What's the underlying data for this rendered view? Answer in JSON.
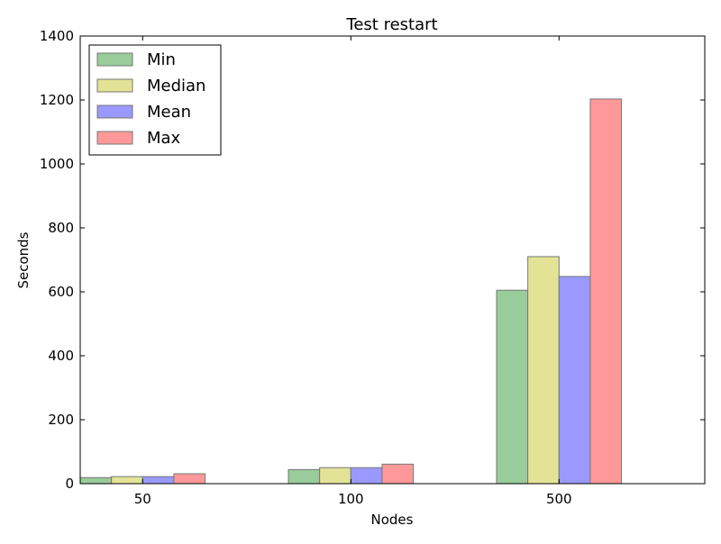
{
  "chart_data": {
    "type": "bar",
    "title": "Test restart",
    "xlabel": "Nodes",
    "ylabel": "Seconds",
    "categories": [
      "50",
      "100",
      "500"
    ],
    "ylim": [
      0,
      1400
    ],
    "yticks": [
      "0",
      "200",
      "400",
      "600",
      "800",
      "1000",
      "1200",
      "1400"
    ],
    "grid": false,
    "legend_position": "top-left",
    "series": [
      {
        "name": "Min",
        "color": "#99cc99",
        "values": [
          19,
          44,
          605
        ]
      },
      {
        "name": "Median",
        "color": "#e3e396",
        "values": [
          22,
          50,
          710
        ]
      },
      {
        "name": "Mean",
        "color": "#9999ff",
        "values": [
          22,
          50,
          648
        ]
      },
      {
        "name": "Max",
        "color": "#ff9999",
        "values": [
          31,
          61,
          1203
        ]
      }
    ]
  }
}
